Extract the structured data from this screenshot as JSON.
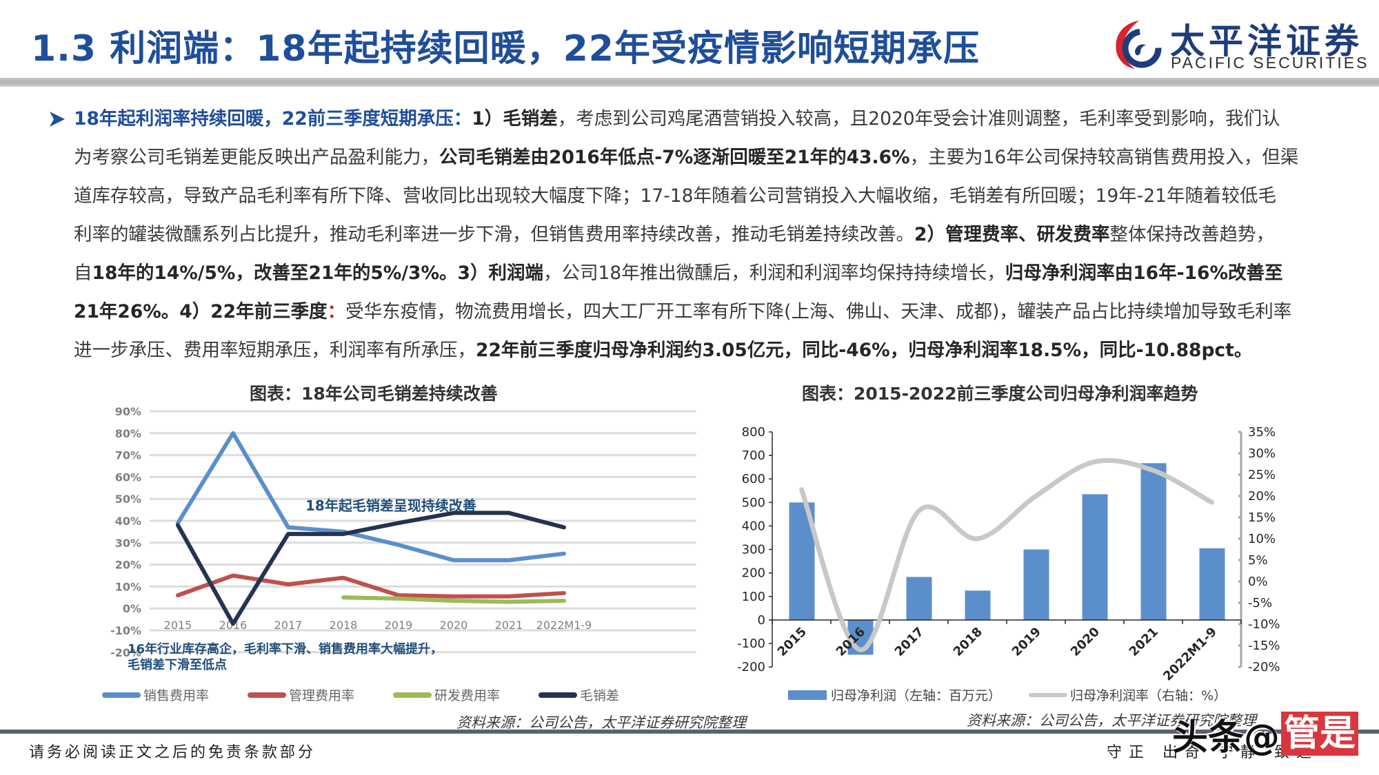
{
  "header": {
    "title": "1.3 利润端：18年起持续回暖，22年受疫情影响短期承压",
    "logo": {
      "name_cn": "太平洋证券",
      "name_en": "PACIFIC SECURITIES",
      "icon": "pacific-securities-logo-icon"
    }
  },
  "body": {
    "bullet_icon": "arrow-bullet-icon",
    "lines": [
      [
        {
          "t": "18年起利润率持续回暖，22前三季度短期承压：",
          "s": "blue"
        },
        {
          "t": "1）",
          "s": ""
        },
        {
          "t": "毛销差",
          "s": "b"
        },
        {
          "t": "，考虑到公司鸡尾酒营销投入较高，且2020年受会计准则调整，毛利率受到影响，我们认",
          "s": ""
        }
      ],
      [
        {
          "t": "为考察公司毛销差更能反映出产品盈利能力，",
          "s": ""
        },
        {
          "t": "公司毛销差由2016年低点-7%逐渐回暖至21年的43.6%",
          "s": "b"
        },
        {
          "t": "，主要为16年公司保持较高销售费用投入，但渠",
          "s": ""
        }
      ],
      [
        {
          "t": "道库存较高，导致产品毛利率有所下降、营收同比出现较大幅度下降；17-18年随着公司营销投入大幅收缩，毛销差有所回暖；19年-21年随着较低毛",
          "s": ""
        }
      ],
      [
        {
          "t": "利率的罐装微醺系列占比提升，推动毛利率进一步下滑，但销售费用率持续改善，推动毛销差持续改善。",
          "s": ""
        },
        {
          "t": "2）管理费率、研发费率",
          "s": "b"
        },
        {
          "t": "整体保持改善趋势，",
          "s": ""
        }
      ],
      [
        {
          "t": "自",
          "s": ""
        },
        {
          "t": "18年的14%/5%，改善至21年的5%/3%。",
          "s": "b"
        },
        {
          "t": "3）利润端",
          "s": "b"
        },
        {
          "t": "，公司18年推出微醺后，利润和利润率均保持持续增长，",
          "s": ""
        },
        {
          "t": "归母净利润率由16年-16%改善至",
          "s": "b"
        }
      ],
      [
        {
          "t": "21年26%。4）22年前三季度",
          "s": "b"
        },
        {
          "t": "：",
          "s": "red"
        },
        {
          "t": "受华东疫情，物流费用增长，四大工厂开工率有所下降(上海、佛山、天津、成都)，罐装产品占比持续增加导致毛利率",
          "s": ""
        }
      ],
      [
        {
          "t": "进一步承压、费用率短期承压，利润率有所承压，",
          "s": ""
        },
        {
          "t": "22年前三季度归母净利润约3.05亿元，同比-46%，归母净利润率18.5%，同比-10.88pct。",
          "s": "b"
        }
      ]
    ]
  },
  "colors": {
    "title_blue": "#1F4E9A",
    "sales_rate": "#5B8FCB",
    "admin_rate": "#C0504D",
    "rd_rate": "#9BBB59",
    "gross_sales_gap": "#243352",
    "net_profit_bar": "#5B8FCB",
    "net_margin_line": "#C8C8C8",
    "annotation_blue": "#1F4E79"
  },
  "chart_data": [
    {
      "type": "line",
      "title": "图表：18年公司毛销差持续改善",
      "categories": [
        "2015",
        "2016",
        "2017",
        "2018",
        "2019",
        "2020",
        "2021",
        "2022M1-9"
      ],
      "series": [
        {
          "name": "销售费用率",
          "values": [
            39,
            80,
            37,
            35,
            29,
            22,
            22,
            25
          ]
        },
        {
          "name": "管理费用率",
          "values": [
            6,
            15,
            11,
            14,
            6,
            5.5,
            5.5,
            7
          ]
        },
        {
          "name": "研发费用率",
          "values": [
            null,
            null,
            null,
            5,
            4.5,
            3.5,
            3,
            3.5
          ]
        },
        {
          "name": "毛销差",
          "values": [
            38,
            -7,
            34,
            34,
            39,
            43.6,
            43.6,
            37
          ]
        }
      ],
      "y_ticks": [
        "90%",
        "80%",
        "70%",
        "60%",
        "50%",
        "40%",
        "30%",
        "20%",
        "10%",
        "0%",
        "-10%",
        "-20%"
      ],
      "ylim": [
        -20,
        90
      ],
      "xlabel": "",
      "ylabel": "",
      "grid": true,
      "legend_position": "bottom",
      "annotations": [
        "18年起毛销差呈现持续改善",
        "16年行业库存高企，毛利率下滑、销售费用率大幅提升，",
        "毛销差下滑至低点"
      ],
      "source": "资料来源：公司公告，太平洋证券研究院整理"
    },
    {
      "type": "bar+line",
      "title": "图表：2015-2022前三季度公司归母净利润率趋势",
      "categories": [
        "2015",
        "2016",
        "2017",
        "2018",
        "2019",
        "2020",
        "2021",
        "2022M1-9"
      ],
      "series": [
        {
          "name": "归母净利润（左轴：百万元）",
          "type": "bar",
          "axis": "left",
          "values": [
            500,
            -148,
            183,
            125,
            300,
            535,
            667,
            305
          ]
        },
        {
          "name": "归母净利润率（右轴：%）",
          "type": "line",
          "axis": "right",
          "values": [
            21.5,
            -16,
            16.5,
            10,
            20,
            28,
            26,
            18.5
          ]
        }
      ],
      "left_axis": {
        "ticks": [
          "800",
          "700",
          "600",
          "500",
          "400",
          "300",
          "200",
          "100",
          "0",
          "-100",
          "-200"
        ],
        "range": [
          -200,
          800
        ]
      },
      "right_axis": {
        "ticks": [
          "35%",
          "30%",
          "25%",
          "20%",
          "15%",
          "10%",
          "5%",
          "0%",
          "-5%",
          "-10%",
          "-15%",
          "-20%"
        ],
        "range": [
          -20,
          35
        ]
      },
      "grid": false,
      "legend_position": "bottom",
      "source": "资料来源：公司公告，太平洋证券研究院整理"
    }
  ],
  "charts": {
    "left": {
      "title": "图表：18年公司毛销差持续改善",
      "annotation_top": "18年起毛销差呈现持续改善",
      "annotation_bottom_1": "16年行业库存高企，毛利率下滑、销售费用率大幅提升，",
      "annotation_bottom_2": "毛销差下滑至低点",
      "legend": [
        "销售费用率",
        "管理费用率",
        "研发费用率",
        "毛销差"
      ],
      "source": "资料来源：公司公告，太平洋证券研究院整理"
    },
    "right": {
      "title": "图表：2015-2022前三季度公司归母净利润率趋势",
      "legend": [
        "归母净利润（左轴：百万元）",
        "归母净利润率（右轴：%）"
      ],
      "source": "资料来源：公司公告，太平洋证券研究院整理"
    }
  },
  "footer": {
    "disclaimer": "请务必阅读正文之后的免责条款部分",
    "motto": "守正 出奇 宁静 致远",
    "watermark_text": "头条@",
    "watermark_box": "管是"
  }
}
